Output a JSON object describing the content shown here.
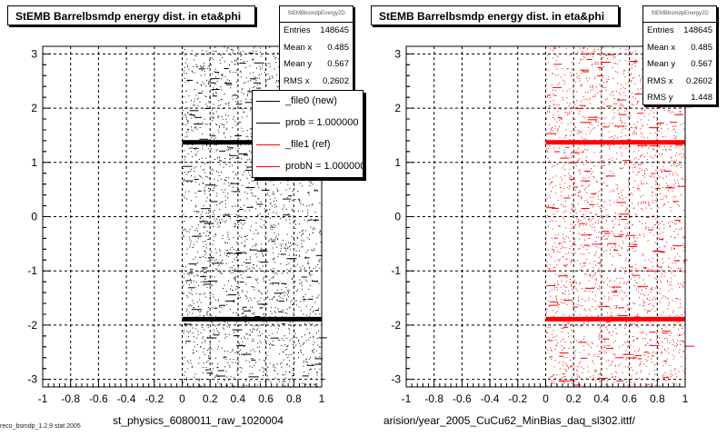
{
  "pads": [
    {
      "title": "StEMB Barrelbsmdp energy dist. in eta&phi",
      "stats": {
        "name": "StEMBbsmdpEnergy2D",
        "rows": [
          {
            "key": "Entries",
            "value": "148645"
          },
          {
            "key": "Mean x",
            "value": "0.485"
          },
          {
            "key": "Mean y",
            "value": "0.567"
          },
          {
            "key": "RMS x",
            "value": "0.2602"
          }
        ]
      },
      "legend": [
        {
          "label": "_file0 (new)",
          "color": "#000000"
        },
        {
          "label": "prob = 1.000000",
          "color": "#000000"
        },
        {
          "label": "_file1 (ref)",
          "color": "#ff0000"
        },
        {
          "label": "probN = 1.000000",
          "color": "#ff0000"
        }
      ],
      "xtitle": "st_physics_6080011_raw_1020004",
      "marker_color": "#000000"
    },
    {
      "title": "StEMB Barrelbsmdp energy dist. in eta&phi",
      "stats": {
        "name": "StEMBbsmdpEnergy2D",
        "rows": [
          {
            "key": "Entries",
            "value": "148645"
          },
          {
            "key": "Mean x",
            "value": "0.485"
          },
          {
            "key": "Mean y",
            "value": "0.567"
          },
          {
            "key": "RMS x",
            "value": "0.2602"
          },
          {
            "key": "RMS y",
            "value": "1.448"
          }
        ]
      },
      "xtitle": "arision/year_2005_CuCu62_MinBias_daq_sl302.ittf/",
      "marker_color": "#ff0000"
    }
  ],
  "footer": "reco_bsmdp_1.2.9 stat 2005",
  "chart_data": [
    {
      "type": "scatter",
      "title": "StEMB Barrelbsmdp energy dist. in eta&phi",
      "xlim": [
        -1,
        1
      ],
      "ylim": [
        -3.14,
        3.14
      ],
      "x_ticks": [
        "-1",
        "-0.8",
        "-0.6",
        "-0.4",
        "-0.2",
        "0",
        "0.2",
        "0.4",
        "0.6",
        "0.8",
        "1"
      ],
      "y_ticks": [
        "-3",
        "-2",
        "-1",
        "0",
        "1",
        "2",
        "3"
      ],
      "grid": true,
      "occupied_x_range": [
        0,
        1
      ],
      "dense_bands_y": [
        1.37,
        -1.89
      ],
      "entries": 148645,
      "mean_x": 0.485,
      "mean_y": 0.567,
      "rms_x": 0.2602,
      "series": [
        {
          "name": "_file0 (new)",
          "color": "#000000"
        }
      ]
    },
    {
      "type": "scatter",
      "title": "StEMB Barrelbsmdp energy dist. in eta&phi",
      "xlim": [
        -1,
        1
      ],
      "ylim": [
        -3.14,
        3.14
      ],
      "x_ticks": [
        "-1",
        "-0.8",
        "-0.6",
        "-0.4",
        "-0.2",
        "0",
        "0.2",
        "0.4",
        "0.6",
        "0.8",
        "1"
      ],
      "y_ticks": [
        "-3",
        "-2",
        "-1",
        "0",
        "1",
        "2",
        "3"
      ],
      "grid": true,
      "occupied_x_range": [
        0,
        1
      ],
      "dense_bands_y": [
        1.37,
        -1.89
      ],
      "entries": 148645,
      "mean_x": 0.485,
      "mean_y": 0.567,
      "rms_x": 0.2602,
      "rms_y": 1.448,
      "series": [
        {
          "name": "_file1 (ref)",
          "color": "#ff0000"
        }
      ]
    }
  ]
}
